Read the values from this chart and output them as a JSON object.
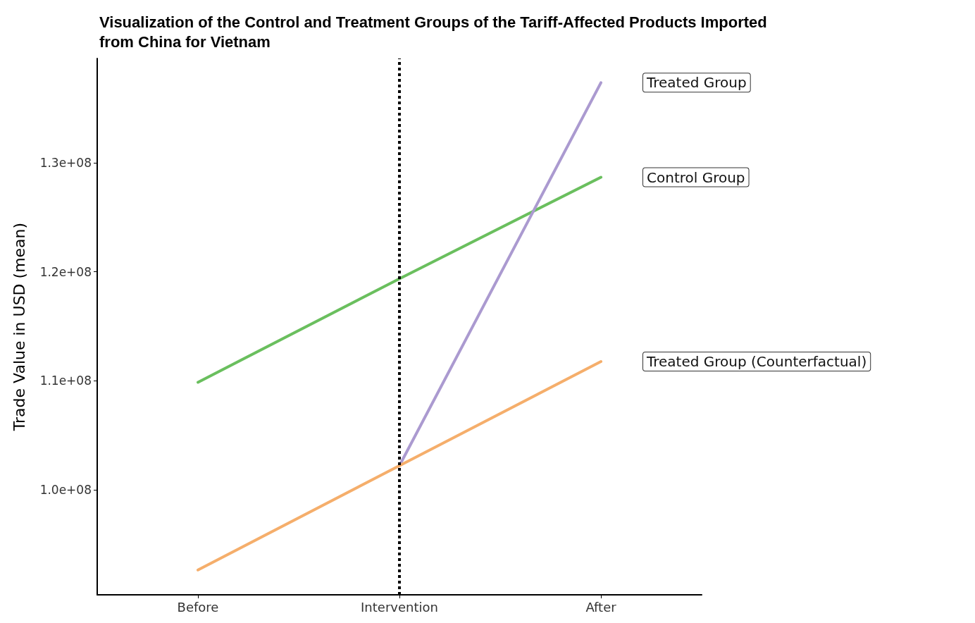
{
  "chart_data": {
    "type": "line",
    "title": "Visualization of the Control and Treatment Groups of the Tariff-Affected Products Imported from China for Vietnam",
    "ylabel": "Trade Value in USD (mean)",
    "categories": [
      "Before",
      "Intervention",
      "After"
    ],
    "series": [
      {
        "name": "Control Group",
        "color": "#6abf5e",
        "values": [
          109870000,
          119370000,
          128670000
        ]
      },
      {
        "name": "Treated Group",
        "color": "#ab9ad0",
        "values": [
          null,
          102220000,
          137340000
        ]
      },
      {
        "name": "Treated Group (Counterfactual)",
        "color": "#f5ae6b",
        "values": [
          92660000,
          102220000,
          111770000
        ]
      }
    ],
    "ylim": [
      90380000,
      139560000
    ],
    "yticks": [
      {
        "value": 100000000,
        "label": "1.0e+08"
      },
      {
        "value": 110000000,
        "label": "1.1e+08"
      },
      {
        "value": 120000000,
        "label": "1.2e+08"
      },
      {
        "value": 130000000,
        "label": "1.3e+08"
      }
    ],
    "ref_lines": [
      {
        "axis": "x",
        "value": "Intervention",
        "color": "#000000",
        "line_style": "dotted"
      }
    ],
    "grid": false,
    "legend": false,
    "marker": "none",
    "line_style": "solid"
  }
}
